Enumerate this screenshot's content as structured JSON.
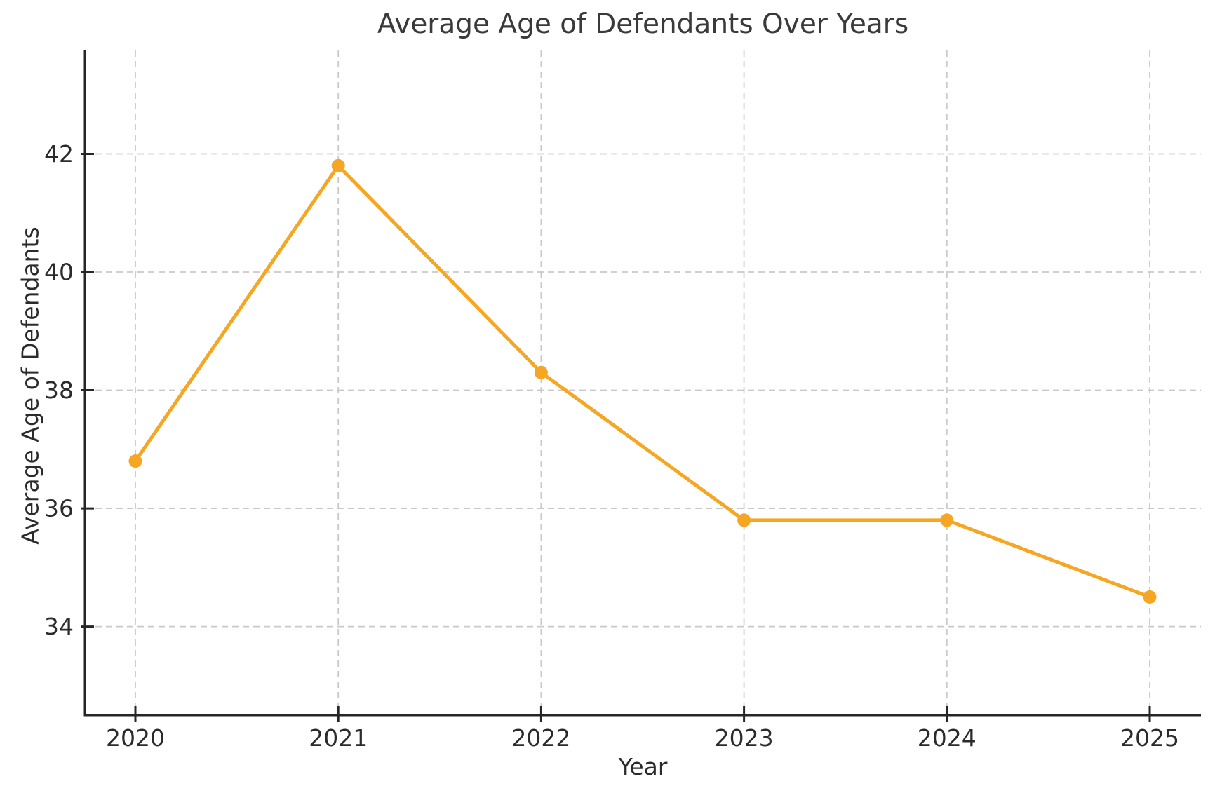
{
  "chart_data": {
    "type": "line",
    "title": "Average Age of Defendants Over Years",
    "xlabel": "Year",
    "ylabel": "Average Age of Defendants",
    "categories": [
      "2020",
      "2021",
      "2022",
      "2023",
      "2024",
      "2025"
    ],
    "series": [
      {
        "name": "Average Age of Defendants",
        "values": [
          36.8,
          41.8,
          38.3,
          35.8,
          35.8,
          34.5
        ]
      }
    ],
    "yticks": [
      34,
      36,
      38,
      40,
      42
    ],
    "ylim": [
      32.5,
      43.75
    ],
    "grid": "on",
    "grid_style": "dashed",
    "legend_position": "none",
    "line_color": "#F5A623",
    "marker": "circle",
    "marker_color": "#F5A623",
    "grid_color": "#c9c9c9",
    "spine_color": "#262626",
    "text_color": "#2b2b2b",
    "background_color": "#ffffff"
  }
}
